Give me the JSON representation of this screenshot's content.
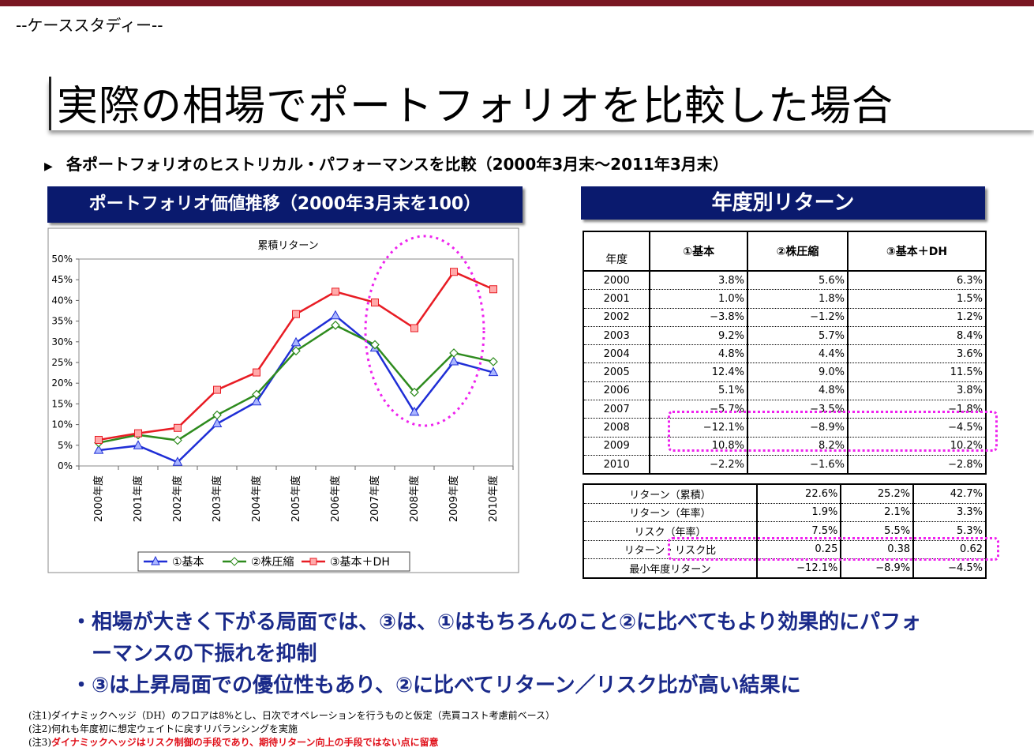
{
  "header": {
    "case_label": "--ケーススタディー--",
    "title": "実際の相場でポートフォリオを比較した場合",
    "subtitle_arrow": "▶",
    "subtitle": "各ポートフォリオのヒストリカル・パフォーマンスを比較（2000年3月末～2011年3月末）"
  },
  "left_panel": {
    "header": "ポートフォリオ価値推移（2000年3月末を100）"
  },
  "right_panel": {
    "header": "年度別リターン"
  },
  "chart_data": {
    "type": "line",
    "title": "累積リターン",
    "categories": [
      "2000年度",
      "2001年度",
      "2002年度",
      "2003年度",
      "2004年度",
      "2005年度",
      "2006年度",
      "2007年度",
      "2008年度",
      "2009年度",
      "2010年度"
    ],
    "ylim": [
      0,
      50
    ],
    "yticks": [
      "0%",
      "5%",
      "10%",
      "15%",
      "20%",
      "25%",
      "30%",
      "35%",
      "40%",
      "45%",
      "50%"
    ],
    "series": [
      {
        "name": "①基本",
        "color": "#1f2ed6",
        "marker": "triangle",
        "values": [
          3.8,
          4.9,
          0.9,
          10.2,
          15.5,
          29.8,
          36.3,
          28.5,
          13.0,
          25.2,
          22.6
        ]
      },
      {
        "name": "②株圧縮",
        "color": "#2e8b1e",
        "marker": "diamond",
        "values": [
          5.6,
          7.5,
          6.2,
          12.3,
          17.3,
          27.8,
          34.0,
          29.3,
          17.8,
          27.3,
          25.2
        ]
      },
      {
        "name": "③基本＋DH",
        "color": "#e81c24",
        "marker": "square",
        "values": [
          6.3,
          7.9,
          9.2,
          18.4,
          22.6,
          36.7,
          42.1,
          39.5,
          33.3,
          46.9,
          42.7
        ]
      }
    ]
  },
  "annual_table": {
    "col_year": "年度",
    "columns": [
      "①基本",
      "②株圧縮",
      "③基本＋DH"
    ],
    "rows": [
      [
        "2000",
        "3.8%",
        "5.6%",
        "6.3%"
      ],
      [
        "2001",
        "1.0%",
        "1.8%",
        "1.5%"
      ],
      [
        "2002",
        "−3.8%",
        "−1.2%",
        "1.2%"
      ],
      [
        "2003",
        "9.2%",
        "5.7%",
        "8.4%"
      ],
      [
        "2004",
        "4.8%",
        "4.4%",
        "3.6%"
      ],
      [
        "2005",
        "12.4%",
        "9.0%",
        "11.5%"
      ],
      [
        "2006",
        "5.1%",
        "4.8%",
        "3.8%"
      ],
      [
        "2007",
        "−5.7%",
        "−3.5%",
        "−1.8%"
      ],
      [
        "2008",
        "−12.1%",
        "−8.9%",
        "−4.5%"
      ],
      [
        "2009",
        "10.8%",
        "8.2%",
        "10.2%"
      ],
      [
        "2010",
        "−2.2%",
        "−1.6%",
        "−2.8%"
      ]
    ]
  },
  "summary_table": {
    "rows": [
      [
        "リターン（累積）",
        "22.6%",
        "25.2%",
        "42.7%"
      ],
      [
        "リターン（年率）",
        "1.9%",
        "2.1%",
        "3.3%"
      ],
      [
        "リスク（年率）",
        "7.5%",
        "5.5%",
        "5.3%"
      ],
      [
        "リターン・リスク比",
        "0.25",
        "0.38",
        "0.62"
      ],
      [
        "最小年度リターン",
        "−12.1%",
        "−8.9%",
        "−4.5%"
      ]
    ]
  },
  "bullets": [
    "・相場が大きく下がる局面では、③は、①はもちろんのこと②に比べてもより効果的にパフォ",
    "　ーマンスの下振れを抑制",
    "・③は上昇局面での優位性もあり、②に比べてリターン／リスク比が高い結果に"
  ],
  "notes": {
    "note1": "(注1)ダイナミックヘッジ（DH）のフロアは8%とし、日次でオペレーションを行うものと仮定（売買コスト考慮前ベース）",
    "note2": "(注2)何れも年度初に想定ウェイトに戻すリバランシングを実施",
    "note3_prefix": "(注3)",
    "note3_red": "ダイナミックヘッジはリスク制御の手段であり、期待リターン向上の手段ではない点に留意"
  }
}
